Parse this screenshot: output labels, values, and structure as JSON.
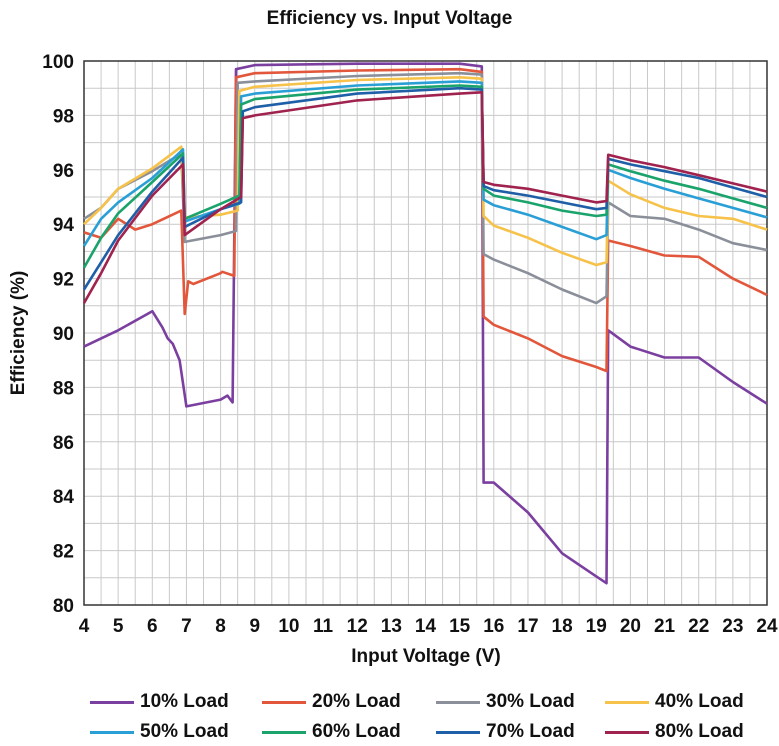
{
  "chart_data": {
    "type": "line",
    "title": "Efficiency vs. Input Voltage",
    "xlabel": "Input Voltage (V)",
    "ylabel": "Efficiency (%)",
    "xlim": [
      4,
      24
    ],
    "ylim": [
      80,
      100
    ],
    "xticks": [
      "4",
      "5",
      "6",
      "7",
      "8",
      "9",
      "10",
      "11",
      "12",
      "13",
      "14",
      "15",
      "16",
      "17",
      "18",
      "19",
      "20",
      "21",
      "22",
      "23",
      "24"
    ],
    "yticks": [
      "80",
      "82",
      "84",
      "86",
      "88",
      "90",
      "92",
      "94",
      "96",
      "98",
      "100"
    ],
    "grid": true,
    "legend_position": "bottom",
    "series": [
      {
        "name": "10% Load",
        "color": "#7b3fa0",
        "points": [
          [
            4,
            89.5
          ],
          [
            5,
            90.1
          ],
          [
            6,
            90.8
          ],
          [
            6.3,
            90.2
          ],
          [
            6.45,
            89.8
          ],
          [
            6.6,
            89.6
          ],
          [
            6.8,
            89.0
          ],
          [
            7.0,
            87.3
          ],
          [
            8.0,
            87.55
          ],
          [
            8.2,
            87.7
          ],
          [
            8.35,
            87.45
          ],
          [
            8.45,
            99.7
          ],
          [
            9,
            99.85
          ],
          [
            12,
            99.9
          ],
          [
            15,
            99.9
          ],
          [
            15.65,
            99.8
          ],
          [
            15.7,
            84.5
          ],
          [
            16,
            84.5
          ],
          [
            17,
            83.4
          ],
          [
            18,
            81.9
          ],
          [
            19,
            81.05
          ],
          [
            19.3,
            80.8
          ],
          [
            19.35,
            90.1
          ],
          [
            20,
            89.5
          ],
          [
            21,
            89.1
          ],
          [
            22,
            89.1
          ],
          [
            23,
            88.2
          ],
          [
            24,
            87.4
          ]
        ]
      },
      {
        "name": "20% Load",
        "color": "#e2573b",
        "points": [
          [
            4,
            93.7
          ],
          [
            4.5,
            93.5
          ],
          [
            5,
            94.2
          ],
          [
            5.5,
            93.8
          ],
          [
            6,
            94.0
          ],
          [
            6.85,
            94.5
          ],
          [
            6.95,
            90.7
          ],
          [
            7.05,
            91.9
          ],
          [
            7.2,
            91.8
          ],
          [
            8,
            92.2
          ],
          [
            8.05,
            92.25
          ],
          [
            8.4,
            92.1
          ],
          [
            8.45,
            99.4
          ],
          [
            9,
            99.55
          ],
          [
            12,
            99.65
          ],
          [
            15,
            99.7
          ],
          [
            15.65,
            99.6
          ],
          [
            15.7,
            90.6
          ],
          [
            16,
            90.3
          ],
          [
            17,
            89.8
          ],
          [
            18,
            89.15
          ],
          [
            19,
            88.75
          ],
          [
            19.3,
            88.6
          ],
          [
            19.35,
            93.4
          ],
          [
            20,
            93.2
          ],
          [
            21,
            92.85
          ],
          [
            22,
            92.8
          ],
          [
            23,
            92.0
          ],
          [
            24,
            91.4
          ]
        ]
      },
      {
        "name": "30% Load",
        "color": "#8a8f99",
        "points": [
          [
            4,
            94.2
          ],
          [
            4.5,
            94.6
          ],
          [
            5,
            95.3
          ],
          [
            6,
            95.95
          ],
          [
            6.85,
            96.6
          ],
          [
            6.95,
            93.35
          ],
          [
            8,
            93.6
          ],
          [
            8.45,
            93.75
          ],
          [
            8.5,
            99.2
          ],
          [
            9,
            99.25
          ],
          [
            12,
            99.45
          ],
          [
            15,
            99.55
          ],
          [
            15.65,
            99.5
          ],
          [
            15.7,
            92.9
          ],
          [
            16,
            92.7
          ],
          [
            17,
            92.2
          ],
          [
            18,
            91.6
          ],
          [
            19,
            91.1
          ],
          [
            19.3,
            91.35
          ],
          [
            19.35,
            94.8
          ],
          [
            20,
            94.3
          ],
          [
            21,
            94.2
          ],
          [
            22,
            93.8
          ],
          [
            23,
            93.3
          ],
          [
            24,
            93.05
          ]
        ]
      },
      {
        "name": "40% Load",
        "color": "#f6c24a",
        "points": [
          [
            4,
            94.0
          ],
          [
            4.5,
            94.6
          ],
          [
            5,
            95.3
          ],
          [
            6,
            96.05
          ],
          [
            6.85,
            96.85
          ],
          [
            6.95,
            94.25
          ],
          [
            8,
            94.35
          ],
          [
            8.5,
            94.5
          ],
          [
            8.55,
            98.9
          ],
          [
            9,
            99.05
          ],
          [
            12,
            99.3
          ],
          [
            15,
            99.4
          ],
          [
            15.65,
            99.35
          ],
          [
            15.7,
            94.3
          ],
          [
            16,
            93.95
          ],
          [
            17,
            93.5
          ],
          [
            18,
            92.95
          ],
          [
            19,
            92.5
          ],
          [
            19.3,
            92.6
          ],
          [
            19.35,
            95.6
          ],
          [
            20,
            95.1
          ],
          [
            21,
            94.6
          ],
          [
            22,
            94.3
          ],
          [
            23,
            94.2
          ],
          [
            24,
            93.8
          ]
        ]
      },
      {
        "name": "50% Load",
        "color": "#2a9fd6",
        "points": [
          [
            4,
            93.2
          ],
          [
            4.5,
            94.2
          ],
          [
            5,
            94.8
          ],
          [
            6,
            95.7
          ],
          [
            6.9,
            96.75
          ],
          [
            6.95,
            94.1
          ],
          [
            8,
            94.55
          ],
          [
            8.55,
            94.75
          ],
          [
            8.6,
            98.7
          ],
          [
            9,
            98.8
          ],
          [
            12,
            99.1
          ],
          [
            15,
            99.25
          ],
          [
            15.65,
            99.2
          ],
          [
            15.7,
            94.9
          ],
          [
            16,
            94.7
          ],
          [
            17,
            94.35
          ],
          [
            18,
            93.9
          ],
          [
            19,
            93.45
          ],
          [
            19.3,
            93.6
          ],
          [
            19.35,
            96.0
          ],
          [
            20,
            95.7
          ],
          [
            21,
            95.3
          ],
          [
            22,
            94.95
          ],
          [
            23,
            94.6
          ],
          [
            24,
            94.25
          ]
        ]
      },
      {
        "name": "60% Load",
        "color": "#1aa36b",
        "points": [
          [
            4,
            92.4
          ],
          [
            4.5,
            93.5
          ],
          [
            5,
            94.4
          ],
          [
            6,
            95.55
          ],
          [
            6.9,
            96.6
          ],
          [
            6.95,
            94.2
          ],
          [
            8,
            94.75
          ],
          [
            8.55,
            95.05
          ],
          [
            8.6,
            98.4
          ],
          [
            9,
            98.6
          ],
          [
            12,
            98.95
          ],
          [
            15,
            99.1
          ],
          [
            15.65,
            99.05
          ],
          [
            15.7,
            95.3
          ],
          [
            16,
            95.05
          ],
          [
            17,
            94.8
          ],
          [
            18,
            94.5
          ],
          [
            19,
            94.3
          ],
          [
            19.3,
            94.35
          ],
          [
            19.35,
            96.2
          ],
          [
            20,
            95.95
          ],
          [
            21,
            95.6
          ],
          [
            22,
            95.3
          ],
          [
            23,
            94.95
          ],
          [
            24,
            94.6
          ]
        ]
      },
      {
        "name": "70% Load",
        "color": "#1f5fa8",
        "points": [
          [
            4,
            91.6
          ],
          [
            4.5,
            92.6
          ],
          [
            5,
            93.6
          ],
          [
            6,
            95.2
          ],
          [
            6.9,
            96.45
          ],
          [
            6.95,
            93.9
          ],
          [
            8,
            94.55
          ],
          [
            8.6,
            94.8
          ],
          [
            8.65,
            98.15
          ],
          [
            9,
            98.3
          ],
          [
            12,
            98.8
          ],
          [
            15,
            99.0
          ],
          [
            15.65,
            98.95
          ],
          [
            15.7,
            95.4
          ],
          [
            16,
            95.25
          ],
          [
            17,
            95.05
          ],
          [
            18,
            94.8
          ],
          [
            19,
            94.55
          ],
          [
            19.3,
            94.6
          ],
          [
            19.35,
            96.4
          ],
          [
            20,
            96.2
          ],
          [
            21,
            95.95
          ],
          [
            22,
            95.7
          ],
          [
            23,
            95.35
          ],
          [
            24,
            95.0
          ]
        ]
      },
      {
        "name": "80% Load",
        "color": "#a0224e",
        "points": [
          [
            4,
            91.1
          ],
          [
            4.5,
            92.2
          ],
          [
            5,
            93.4
          ],
          [
            6,
            95.05
          ],
          [
            6.9,
            96.2
          ],
          [
            6.95,
            93.6
          ],
          [
            8,
            94.55
          ],
          [
            8.6,
            95.0
          ],
          [
            8.65,
            97.9
          ],
          [
            9,
            98.0
          ],
          [
            12,
            98.55
          ],
          [
            15,
            98.8
          ],
          [
            15.65,
            98.85
          ],
          [
            15.7,
            95.55
          ],
          [
            16,
            95.45
          ],
          [
            17,
            95.3
          ],
          [
            18,
            95.05
          ],
          [
            19,
            94.8
          ],
          [
            19.3,
            94.85
          ],
          [
            19.35,
            96.55
          ],
          [
            20,
            96.35
          ],
          [
            21,
            96.1
          ],
          [
            22,
            95.8
          ],
          [
            23,
            95.5
          ],
          [
            24,
            95.2
          ]
        ]
      }
    ]
  }
}
